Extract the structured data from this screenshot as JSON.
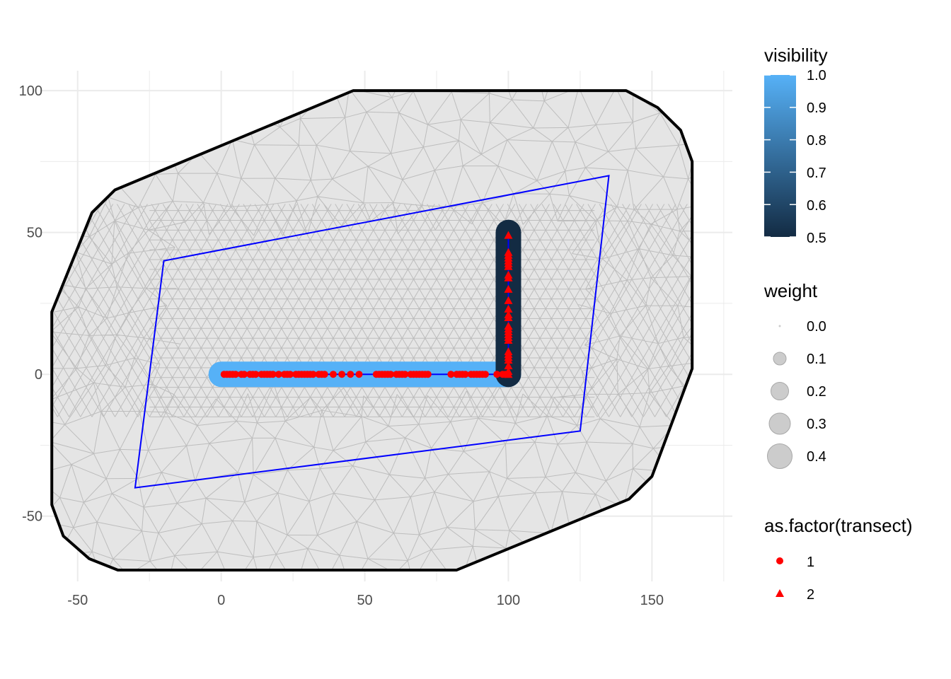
{
  "chart_data": {
    "type": "scatter",
    "title": "",
    "xlabel": "",
    "ylabel": "",
    "xlim": [
      -63,
      178
    ],
    "ylim": [
      -73,
      107
    ],
    "x_ticks": [
      -50,
      0,
      50,
      100,
      150
    ],
    "y_ticks": [
      -50,
      0,
      50,
      100
    ],
    "x_tick_labels": [
      "-50",
      "0",
      "50",
      "100",
      "150"
    ],
    "y_tick_labels": [
      "-50",
      "0",
      "50",
      "100"
    ],
    "grid": true,
    "colors": {
      "mesh_fill": "#e5e5e5",
      "mesh_edge": "#bdbdbd",
      "boundary": "#000000",
      "survey_region": "#0000ff",
      "visibility_low": "#132b43",
      "visibility_high": "#56b1f7",
      "detections": "#ff0000",
      "weight_points": "#bfbfbf"
    },
    "mesh_boundary": [
      [
        -59,
        -46
      ],
      [
        -55,
        -57
      ],
      [
        -46,
        -65
      ],
      [
        -36,
        -69
      ],
      [
        82,
        -69
      ],
      [
        142,
        -44
      ],
      [
        150,
        -36
      ],
      [
        164,
        2
      ],
      [
        164,
        75
      ],
      [
        160,
        86
      ],
      [
        152,
        94
      ],
      [
        141,
        100
      ],
      [
        46,
        100
      ],
      [
        -37,
        65
      ],
      [
        -45,
        57
      ],
      [
        -59,
        22
      ]
    ],
    "survey_region": [
      [
        -20,
        40
      ],
      [
        135,
        70
      ],
      [
        125,
        -20
      ],
      [
        -30,
        -40
      ]
    ],
    "transects": [
      {
        "name": "1",
        "x": [
          0,
          100
        ],
        "y": [
          0,
          0
        ],
        "visibility": 1.0
      },
      {
        "name": "2",
        "x": [
          100,
          100
        ],
        "y": [
          0,
          50
        ],
        "visibility": 0.5
      }
    ],
    "detections": {
      "transect_1_x": [
        1,
        2,
        3,
        4,
        5,
        7,
        8,
        10,
        11,
        12,
        14,
        15,
        16,
        17,
        18,
        20,
        22,
        23,
        24,
        26,
        27,
        28,
        29,
        30,
        31,
        32,
        34,
        35,
        36,
        39,
        42,
        45,
        48,
        54,
        55,
        56,
        57,
        58,
        59,
        61,
        62,
        63,
        64,
        66,
        67,
        68,
        69,
        70,
        71,
        72,
        80,
        82,
        83,
        84,
        85,
        87,
        88,
        89,
        90,
        91,
        92,
        96,
        98,
        99
      ],
      "transect_2_y": [
        0,
        1,
        3,
        5,
        6,
        7,
        8,
        12,
        13,
        14,
        15,
        16,
        17,
        20,
        21,
        23,
        26,
        30,
        34,
        35,
        38,
        39,
        40,
        41,
        42,
        43,
        49
      ]
    },
    "legends": [
      {
        "title": "visibility",
        "type": "colorbar",
        "range": [
          0.5,
          1.0
        ],
        "labels": [
          "1.0",
          "0.9",
          "0.8",
          "0.7",
          "0.6",
          "0.5"
        ]
      },
      {
        "title": "weight",
        "type": "size",
        "labels": [
          "0.0",
          "0.1",
          "0.2",
          "0.3",
          "0.4"
        ],
        "values": [
          0.0,
          0.1,
          0.2,
          0.3,
          0.4
        ]
      },
      {
        "title": "as.factor(transect)",
        "type": "shape",
        "labels": [
          "1",
          "2"
        ],
        "shapes": [
          "circle",
          "triangle"
        ]
      }
    ]
  }
}
